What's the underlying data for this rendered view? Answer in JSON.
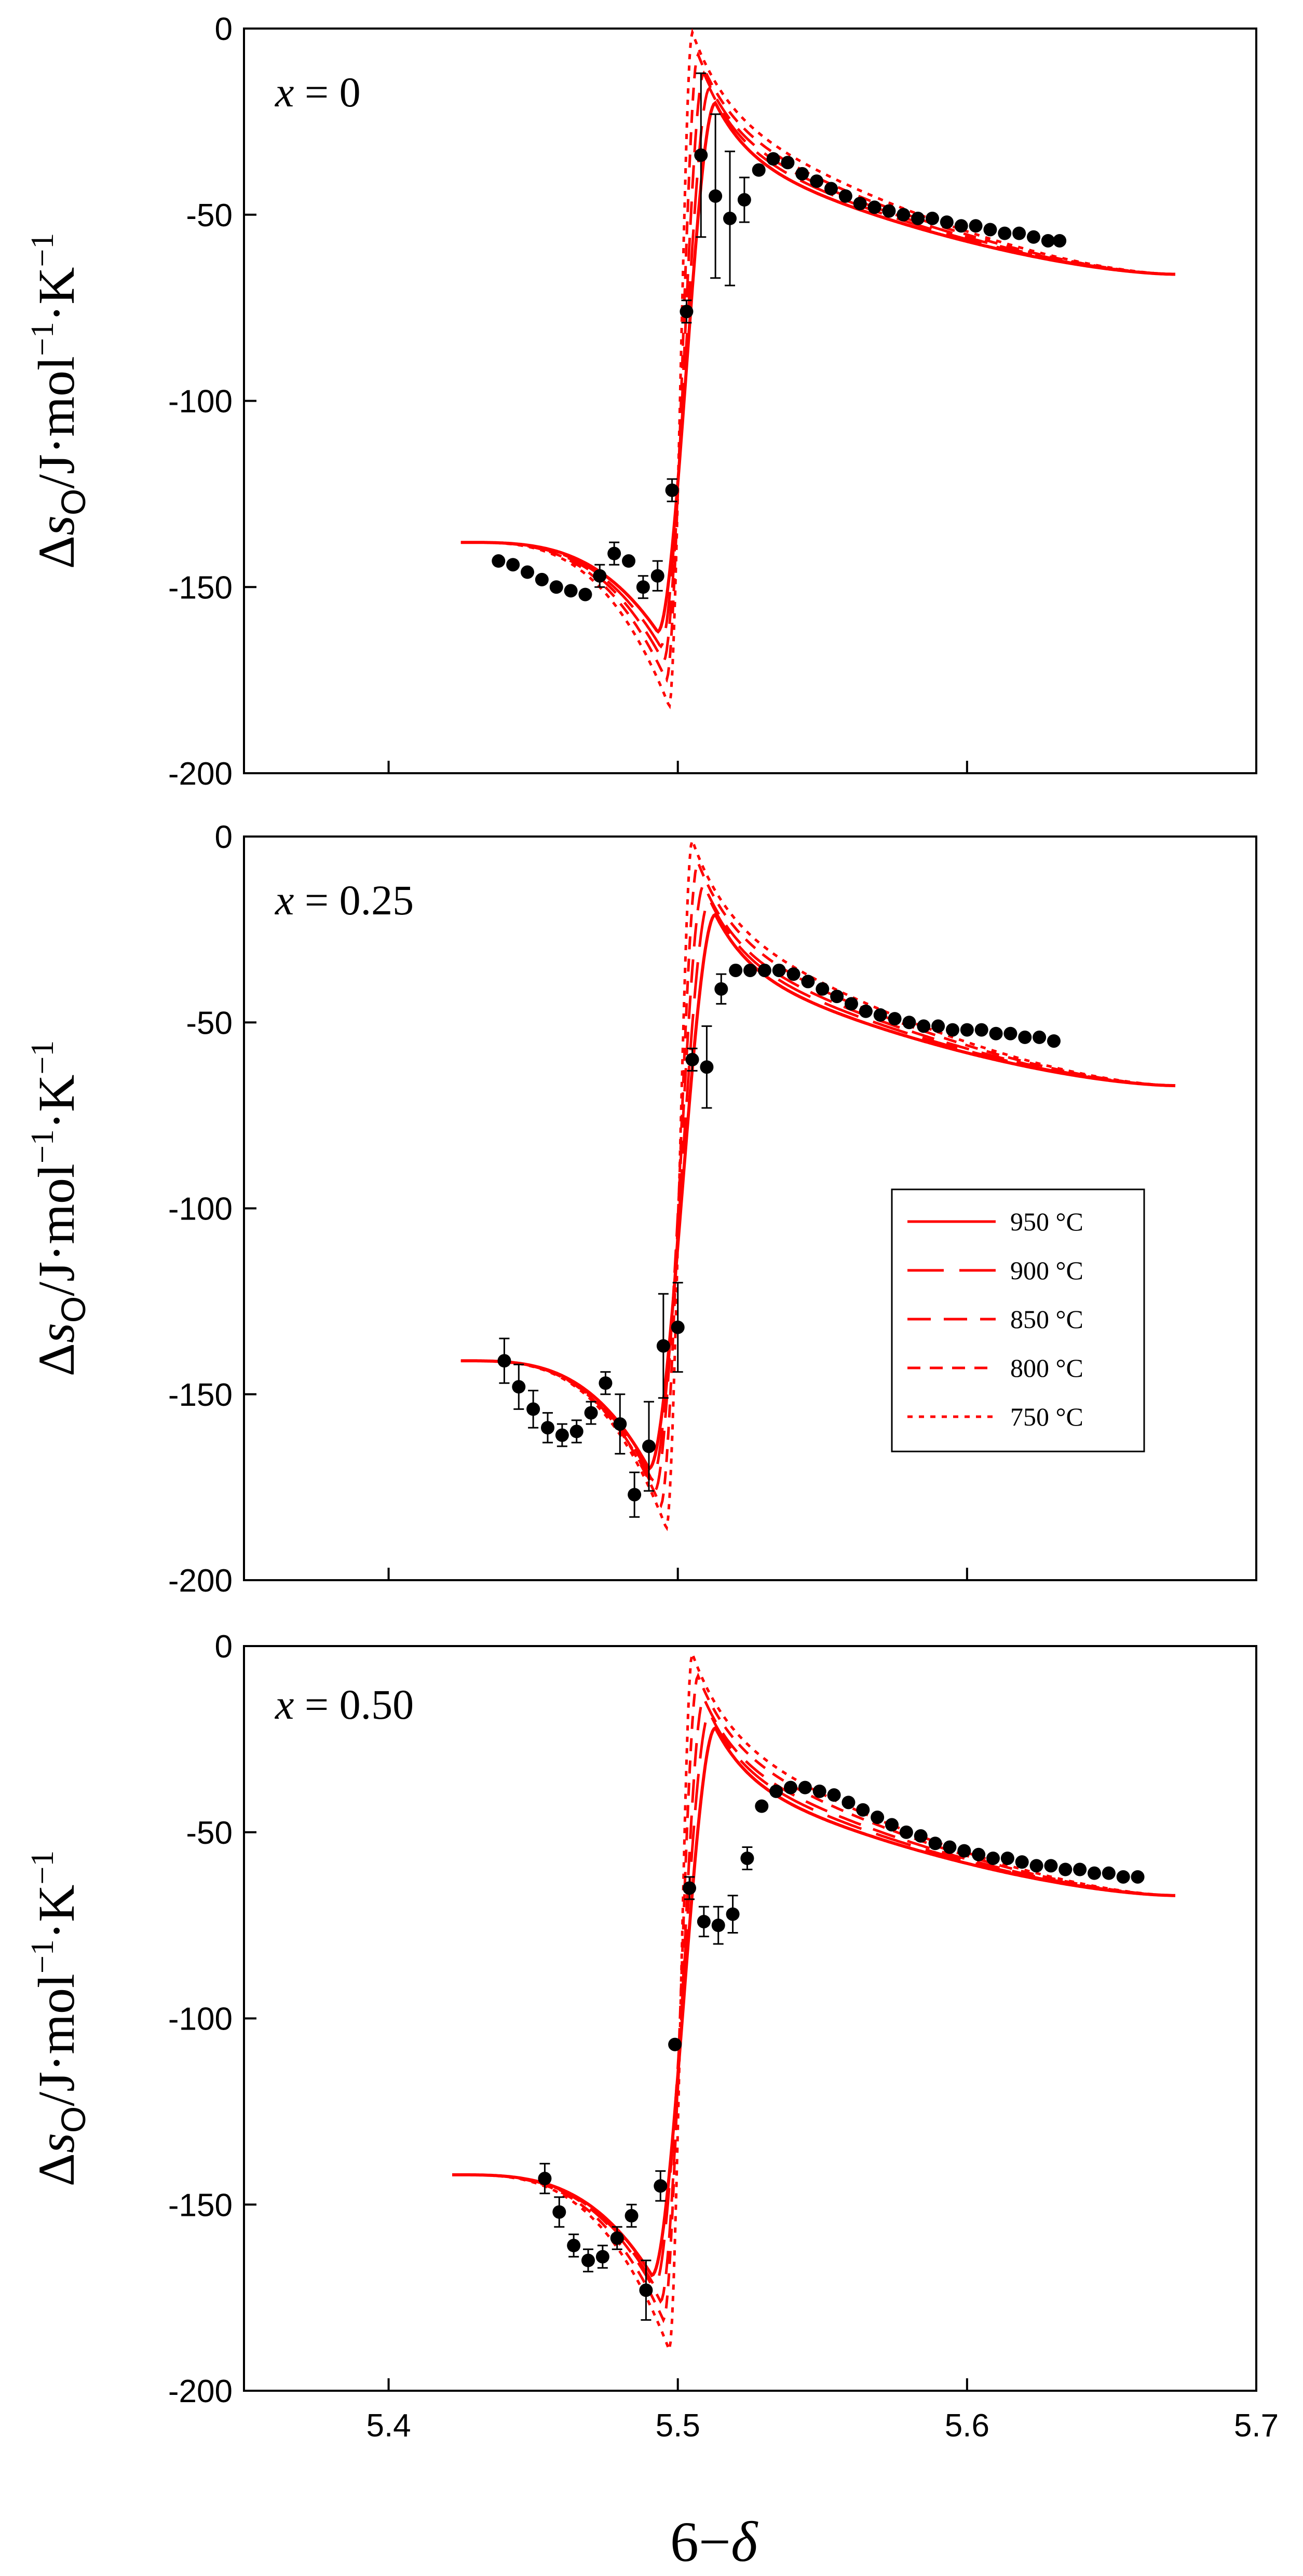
{
  "figure": {
    "xlabel": "6−δ",
    "ylabel_main": "Δs",
    "ylabel_sub": "O",
    "ylabel_rest": "/J·mol",
    "ylabel_exp1": "−1",
    "ylabel_mid": "·K",
    "ylabel_exp2": "−1",
    "xlim": [
      5.35,
      5.7
    ],
    "ylim": [
      -200,
      0
    ],
    "xticks": [
      "5.4",
      "5.5",
      "5.6",
      "5.7"
    ],
    "yticks": [
      "0",
      "-50",
      "-100",
      "-150",
      "-200"
    ],
    "line_color": "#ff0000",
    "marker_color": "#000000"
  },
  "legend": {
    "items": [
      {
        "label": "950 °C",
        "dash": "solid"
      },
      {
        "label": "900 °C",
        "dash": "long-dash"
      },
      {
        "label": "850 °C",
        "dash": "dash"
      },
      {
        "label": "800 °C",
        "dash": "short-dash"
      },
      {
        "label": "750 °C",
        "dash": "dot"
      }
    ]
  },
  "chart_data": [
    {
      "type": "line+scatter",
      "annotation": "x = 0",
      "model_x_range": [
        5.425,
        5.672
      ],
      "model": {
        "left_start": -138,
        "right_end": -66,
        "min": [
          {
            "temp": "950 °C",
            "x": 5.493,
            "y": -162
          },
          {
            "temp": "900 °C",
            "x": 5.494,
            "y": -166
          },
          {
            "temp": "850 °C",
            "x": 5.495,
            "y": -170
          },
          {
            "temp": "800 °C",
            "x": 5.496,
            "y": -175
          },
          {
            "temp": "750 °C",
            "x": 5.497,
            "y": -182
          }
        ],
        "max": [
          {
            "temp": "950 °C",
            "x": 5.513,
            "y": -20
          },
          {
            "temp": "900 °C",
            "x": 5.511,
            "y": -16
          },
          {
            "temp": "850 °C",
            "x": 5.509,
            "y": -12
          },
          {
            "temp": "800 °C",
            "x": 5.507,
            "y": -7
          },
          {
            "temp": "750 °C",
            "x": 5.505,
            "y": -1
          }
        ]
      },
      "points": [
        {
          "x": 5.438,
          "y": -143,
          "err": 2
        },
        {
          "x": 5.443,
          "y": -144,
          "err": 2
        },
        {
          "x": 5.448,
          "y": -146,
          "err": 2
        },
        {
          "x": 5.453,
          "y": -148,
          "err": 2
        },
        {
          "x": 5.458,
          "y": -150,
          "err": 2
        },
        {
          "x": 5.463,
          "y": -151,
          "err": 2
        },
        {
          "x": 5.468,
          "y": -152,
          "err": 2
        },
        {
          "x": 5.473,
          "y": -147,
          "err": 3
        },
        {
          "x": 5.478,
          "y": -141,
          "err": 3
        },
        {
          "x": 5.483,
          "y": -143,
          "err": 2
        },
        {
          "x": 5.488,
          "y": -150,
          "err": 3
        },
        {
          "x": 5.493,
          "y": -147,
          "err": 4
        },
        {
          "x": 5.498,
          "y": -124,
          "err": 3
        },
        {
          "x": 5.503,
          "y": -76,
          "err": 3
        },
        {
          "x": 5.508,
          "y": -34,
          "err": 22
        },
        {
          "x": 5.513,
          "y": -45,
          "err": 22
        },
        {
          "x": 5.518,
          "y": -51,
          "err": 18
        },
        {
          "x": 5.523,
          "y": -46,
          "err": 6
        },
        {
          "x": 5.528,
          "y": -38,
          "err": 2
        },
        {
          "x": 5.533,
          "y": -35,
          "err": 2
        },
        {
          "x": 5.538,
          "y": -36,
          "err": 2
        },
        {
          "x": 5.543,
          "y": -39,
          "err": 2
        },
        {
          "x": 5.548,
          "y": -41,
          "err": 2
        },
        {
          "x": 5.553,
          "y": -43,
          "err": 2
        },
        {
          "x": 5.558,
          "y": -45,
          "err": 2
        },
        {
          "x": 5.563,
          "y": -47,
          "err": 2
        },
        {
          "x": 5.568,
          "y": -48,
          "err": 2
        },
        {
          "x": 5.573,
          "y": -49,
          "err": 2
        },
        {
          "x": 5.578,
          "y": -50,
          "err": 2
        },
        {
          "x": 5.583,
          "y": -51,
          "err": 2
        },
        {
          "x": 5.588,
          "y": -51,
          "err": 2
        },
        {
          "x": 5.593,
          "y": -52,
          "err": 2
        },
        {
          "x": 5.598,
          "y": -53,
          "err": 2
        },
        {
          "x": 5.603,
          "y": -53,
          "err": 2
        },
        {
          "x": 5.608,
          "y": -54,
          "err": 2
        },
        {
          "x": 5.613,
          "y": -55,
          "err": 2
        },
        {
          "x": 5.618,
          "y": -55,
          "err": 2
        },
        {
          "x": 5.623,
          "y": -56,
          "err": 2
        },
        {
          "x": 5.628,
          "y": -57,
          "err": 2
        },
        {
          "x": 5.632,
          "y": -57,
          "err": 2
        }
      ]
    },
    {
      "type": "line+scatter",
      "annotation": "x = 0.25",
      "model_x_range": [
        5.425,
        5.672
      ],
      "model": {
        "left_start": -141,
        "right_end": -67,
        "min": [
          {
            "temp": "950 °C",
            "x": 5.49,
            "y": -170
          },
          {
            "temp": "900 °C",
            "x": 5.491,
            "y": -173
          },
          {
            "temp": "850 °C",
            "x": 5.492,
            "y": -176
          },
          {
            "temp": "800 °C",
            "x": 5.494,
            "y": -180
          },
          {
            "temp": "750 °C",
            "x": 5.496,
            "y": -186
          }
        ],
        "max": [
          {
            "temp": "950 °C",
            "x": 5.513,
            "y": -21
          },
          {
            "temp": "900 °C",
            "x": 5.511,
            "y": -17
          },
          {
            "temp": "850 °C",
            "x": 5.509,
            "y": -13
          },
          {
            "temp": "800 °C",
            "x": 5.507,
            "y": -7
          },
          {
            "temp": "750 °C",
            "x": 5.505,
            "y": -1
          }
        ]
      },
      "points": [
        {
          "x": 5.44,
          "y": -141,
          "err": 6
        },
        {
          "x": 5.445,
          "y": -148,
          "err": 6
        },
        {
          "x": 5.45,
          "y": -154,
          "err": 5
        },
        {
          "x": 5.455,
          "y": -159,
          "err": 4
        },
        {
          "x": 5.46,
          "y": -161,
          "err": 3
        },
        {
          "x": 5.465,
          "y": -160,
          "err": 3
        },
        {
          "x": 5.47,
          "y": -155,
          "err": 3
        },
        {
          "x": 5.475,
          "y": -147,
          "err": 3
        },
        {
          "x": 5.48,
          "y": -158,
          "err": 8
        },
        {
          "x": 5.485,
          "y": -177,
          "err": 6
        },
        {
          "x": 5.49,
          "y": -164,
          "err": 12
        },
        {
          "x": 5.495,
          "y": -137,
          "err": 14
        },
        {
          "x": 5.5,
          "y": -132,
          "err": 12
        },
        {
          "x": 5.505,
          "y": -60,
          "err": 3
        },
        {
          "x": 5.51,
          "y": -62,
          "err": 11
        },
        {
          "x": 5.515,
          "y": -41,
          "err": 4
        },
        {
          "x": 5.52,
          "y": -36,
          "err": 2
        },
        {
          "x": 5.525,
          "y": -36,
          "err": 2
        },
        {
          "x": 5.53,
          "y": -36,
          "err": 2
        },
        {
          "x": 5.535,
          "y": -36,
          "err": 2
        },
        {
          "x": 5.54,
          "y": -37,
          "err": 2
        },
        {
          "x": 5.545,
          "y": -39,
          "err": 2
        },
        {
          "x": 5.55,
          "y": -41,
          "err": 2
        },
        {
          "x": 5.555,
          "y": -43,
          "err": 2
        },
        {
          "x": 5.56,
          "y": -45,
          "err": 2
        },
        {
          "x": 5.565,
          "y": -47,
          "err": 2
        },
        {
          "x": 5.57,
          "y": -48,
          "err": 2
        },
        {
          "x": 5.575,
          "y": -49,
          "err": 2
        },
        {
          "x": 5.58,
          "y": -50,
          "err": 2
        },
        {
          "x": 5.585,
          "y": -51,
          "err": 2
        },
        {
          "x": 5.59,
          "y": -51,
          "err": 2
        },
        {
          "x": 5.595,
          "y": -52,
          "err": 2
        },
        {
          "x": 5.6,
          "y": -52,
          "err": 2
        },
        {
          "x": 5.605,
          "y": -52,
          "err": 2
        },
        {
          "x": 5.61,
          "y": -53,
          "err": 2
        },
        {
          "x": 5.615,
          "y": -53,
          "err": 2
        },
        {
          "x": 5.62,
          "y": -54,
          "err": 2
        },
        {
          "x": 5.625,
          "y": -54,
          "err": 2
        },
        {
          "x": 5.63,
          "y": -55,
          "err": 2
        }
      ]
    },
    {
      "type": "line+scatter",
      "annotation": "x = 0.50",
      "model_x_range": [
        5.422,
        5.672
      ],
      "model": {
        "left_start": -142,
        "right_end": -67,
        "min": [
          {
            "temp": "950 °C",
            "x": 5.491,
            "y": -169
          },
          {
            "temp": "900 °C",
            "x": 5.492,
            "y": -172
          },
          {
            "temp": "850 °C",
            "x": 5.494,
            "y": -176
          },
          {
            "temp": "800 °C",
            "x": 5.495,
            "y": -181
          },
          {
            "temp": "750 °C",
            "x": 5.497,
            "y": -189
          }
        ],
        "max": [
          {
            "temp": "950 °C",
            "x": 5.513,
            "y": -22
          },
          {
            "temp": "900 °C",
            "x": 5.511,
            "y": -18
          },
          {
            "temp": "850 °C",
            "x": 5.509,
            "y": -14
          },
          {
            "temp": "800 °C",
            "x": 5.507,
            "y": -8
          },
          {
            "temp": "750 °C",
            "x": 5.505,
            "y": -2
          }
        ]
      },
      "points": [
        {
          "x": 5.454,
          "y": -143,
          "err": 4
        },
        {
          "x": 5.459,
          "y": -152,
          "err": 4
        },
        {
          "x": 5.464,
          "y": -161,
          "err": 3
        },
        {
          "x": 5.469,
          "y": -165,
          "err": 3
        },
        {
          "x": 5.474,
          "y": -164,
          "err": 3
        },
        {
          "x": 5.479,
          "y": -159,
          "err": 3
        },
        {
          "x": 5.484,
          "y": -153,
          "err": 3
        },
        {
          "x": 5.489,
          "y": -173,
          "err": 8
        },
        {
          "x": 5.494,
          "y": -145,
          "err": 4
        },
        {
          "x": 5.499,
          "y": -107,
          "err": 2
        },
        {
          "x": 5.504,
          "y": -65,
          "err": 3
        },
        {
          "x": 5.509,
          "y": -74,
          "err": 4
        },
        {
          "x": 5.514,
          "y": -75,
          "err": 5
        },
        {
          "x": 5.519,
          "y": -72,
          "err": 5
        },
        {
          "x": 5.524,
          "y": -57,
          "err": 3
        },
        {
          "x": 5.529,
          "y": -43,
          "err": 2
        },
        {
          "x": 5.534,
          "y": -39,
          "err": 2
        },
        {
          "x": 5.539,
          "y": -38,
          "err": 2
        },
        {
          "x": 5.544,
          "y": -38,
          "err": 2
        },
        {
          "x": 5.549,
          "y": -39,
          "err": 2
        },
        {
          "x": 5.554,
          "y": -40,
          "err": 2
        },
        {
          "x": 5.559,
          "y": -42,
          "err": 2
        },
        {
          "x": 5.564,
          "y": -44,
          "err": 2
        },
        {
          "x": 5.569,
          "y": -46,
          "err": 2
        },
        {
          "x": 5.574,
          "y": -48,
          "err": 2
        },
        {
          "x": 5.579,
          "y": -50,
          "err": 2
        },
        {
          "x": 5.584,
          "y": -51,
          "err": 2
        },
        {
          "x": 5.589,
          "y": -53,
          "err": 2
        },
        {
          "x": 5.594,
          "y": -54,
          "err": 2
        },
        {
          "x": 5.599,
          "y": -55,
          "err": 2
        },
        {
          "x": 5.604,
          "y": -56,
          "err": 2
        },
        {
          "x": 5.609,
          "y": -57,
          "err": 2
        },
        {
          "x": 5.614,
          "y": -57,
          "err": 2
        },
        {
          "x": 5.619,
          "y": -58,
          "err": 2
        },
        {
          "x": 5.624,
          "y": -59,
          "err": 2
        },
        {
          "x": 5.629,
          "y": -59,
          "err": 2
        },
        {
          "x": 5.634,
          "y": -60,
          "err": 2
        },
        {
          "x": 5.639,
          "y": -60,
          "err": 2
        },
        {
          "x": 5.644,
          "y": -61,
          "err": 2
        },
        {
          "x": 5.649,
          "y": -61,
          "err": 2
        },
        {
          "x": 5.654,
          "y": -62,
          "err": 2
        },
        {
          "x": 5.659,
          "y": -62,
          "err": 2
        }
      ]
    }
  ]
}
